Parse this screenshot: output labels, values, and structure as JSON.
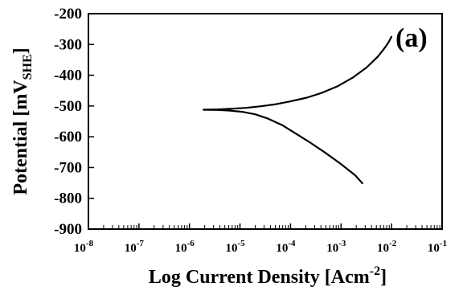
{
  "chart_data": {
    "type": "line",
    "panel_label": "(a)",
    "xlabel": "Log Current Density [Acm",
    "xlabel_sup": "-2",
    "xlabel_end": "]",
    "ylabel": "Potential [mV",
    "ylabel_sub": "SHE",
    "ylabel_end": "]",
    "x_scale": "log",
    "xlim_exp": [
      -8,
      -1
    ],
    "ylim": [
      -900,
      -200
    ],
    "x_ticks": [
      {
        "base": "10",
        "exp": "-8"
      },
      {
        "base": "10",
        "exp": "-7"
      },
      {
        "base": "10",
        "exp": "-6"
      },
      {
        "base": "10",
        "exp": "-5"
      },
      {
        "base": "10",
        "exp": "-4"
      },
      {
        "base": "10",
        "exp": "-3"
      },
      {
        "base": "10",
        "exp": "-2"
      },
      {
        "base": "10",
        "exp": "-1"
      }
    ],
    "y_ticks": [
      "-200",
      "-300",
      "-400",
      "-500",
      "-600",
      "-700",
      "-800",
      "-900"
    ],
    "y_tick_values": [
      -200,
      -300,
      -400,
      -500,
      -600,
      -700,
      -800,
      -900
    ],
    "grid": false,
    "series": [
      {
        "x": [
          1.84e-06,
          3.5e-06,
          6.6e-06,
          1.3e-05,
          2.6e-05,
          5.2e-05,
          0.0001,
          0.00021,
          0.00042,
          0.00085,
          0.0017,
          0.0032,
          0.0054,
          0.0075,
          0.0089,
          0.0098,
          0.01
        ],
        "y": [
          -512,
          -511,
          -509,
          -506,
          -501,
          -494,
          -485,
          -473,
          -457,
          -436,
          -408,
          -375,
          -339,
          -309,
          -290,
          -277,
          -273
        ]
      },
      {
        "x": [
          1.84e-06,
          3.6e-06,
          6.4e-06,
          1.1e-05,
          2e-05,
          3.6e-05,
          6.8e-05,
          0.00012,
          0.00024,
          0.00048,
          0.00095,
          0.0019,
          0.0027
        ],
        "y": [
          -512,
          -513,
          -515,
          -519,
          -527,
          -541,
          -562,
          -587,
          -618,
          -651,
          -686,
          -725,
          -753
        ]
      }
    ]
  }
}
